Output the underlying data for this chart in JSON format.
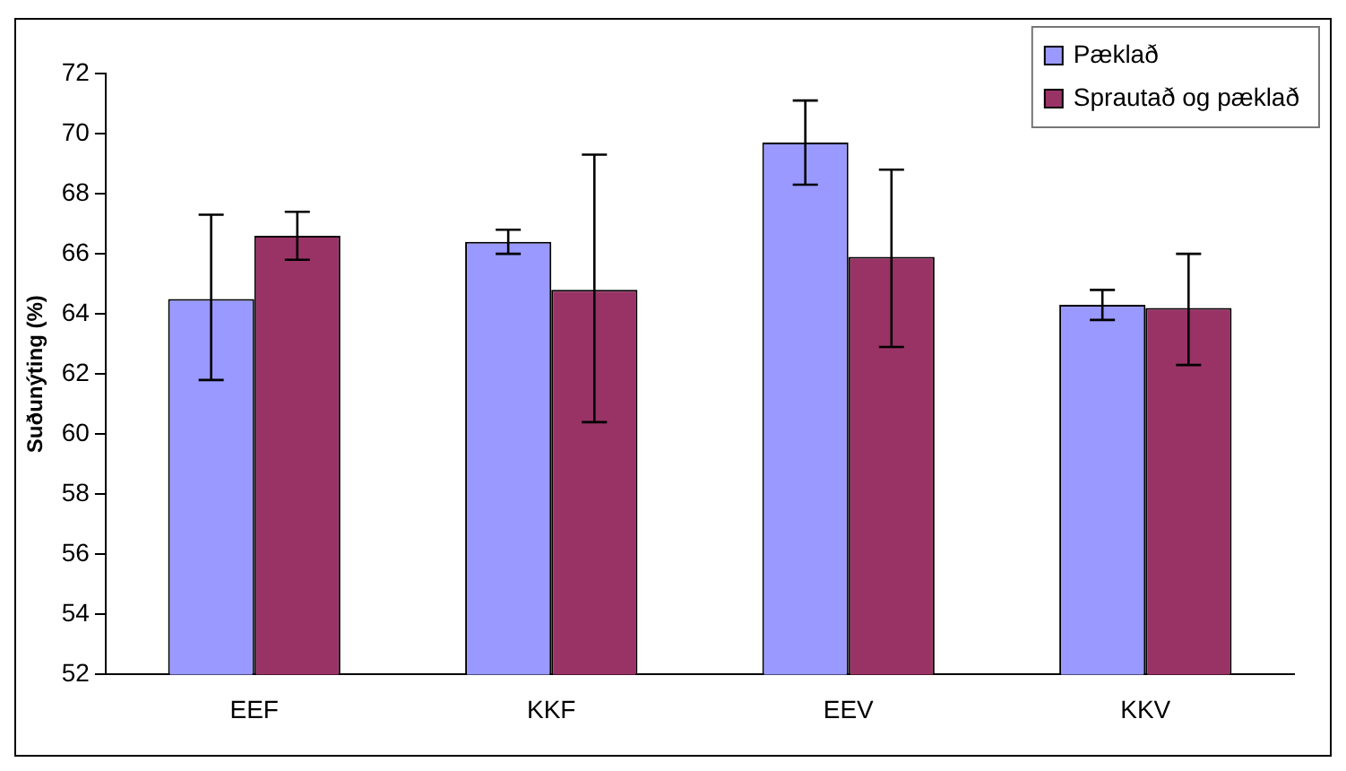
{
  "chart_data": {
    "type": "bar",
    "ylabel": "Suðunýting (%)",
    "categories": [
      "EEF",
      "KKF",
      "EEV",
      "KKV"
    ],
    "series": [
      {
        "name": "Pæklað",
        "color": "#9999ff",
        "values": [
          64.5,
          66.4,
          69.7,
          64.3
        ],
        "errors": [
          [
            61.8,
            67.3
          ],
          [
            66.0,
            66.8
          ],
          [
            68.3,
            71.1
          ],
          [
            63.8,
            64.8
          ]
        ]
      },
      {
        "name": "Sprautað og pæklað",
        "color": "#993366",
        "values": [
          66.6,
          64.8,
          65.9,
          64.2
        ],
        "errors": [
          [
            65.8,
            67.4
          ],
          [
            60.4,
            69.3
          ],
          [
            62.9,
            68.8
          ],
          [
            62.3,
            66.0
          ]
        ]
      }
    ],
    "ylim": [
      52,
      72
    ],
    "yticks": [
      52,
      54,
      56,
      58,
      60,
      62,
      64,
      66,
      68,
      70,
      72
    ],
    "grid": false,
    "legend": "top right"
  }
}
